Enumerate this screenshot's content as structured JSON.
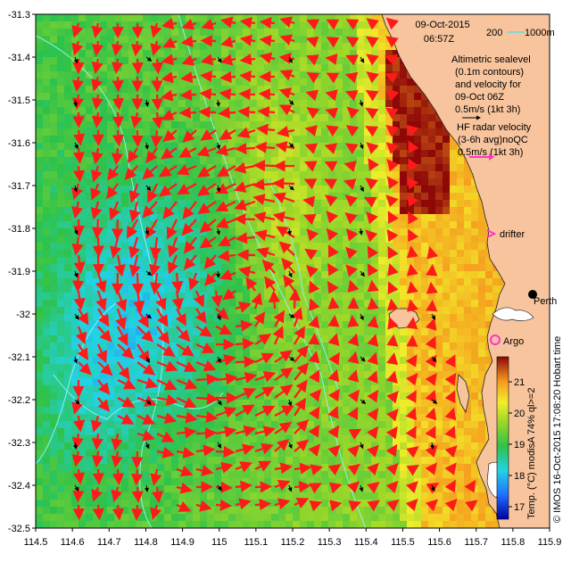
{
  "title": {
    "date": "09-Oct-2015",
    "time": "06:57Z"
  },
  "scale_bar": {
    "label_left": "200",
    "label_right": "1000m"
  },
  "altimetry_legend": {
    "line1": "Altimetric sealevel",
    "line2": "(0.1m contours)",
    "line3": "and velocity for",
    "line4": "09-Oct 06Z",
    "line5": "0.5m/s (1kt 3h)"
  },
  "radar_legend": {
    "line1": "HF radar velocity",
    "line2": "(3-6h avg)noQC",
    "line3": "0.5m/s (1kt 3h)"
  },
  "markers": {
    "drifter": "drifter",
    "argo": "Argo",
    "city": "Perth"
  },
  "x_axis": {
    "ticks": [
      "114.5",
      "114.6",
      "114.7",
      "114.8",
      "114.9",
      "115",
      "115.1",
      "115.2",
      "115.3",
      "115.4",
      "115.5",
      "115.6",
      "115.7",
      "115.8",
      "115.9"
    ]
  },
  "y_axis": {
    "ticks": [
      "-31.3",
      "-31.4",
      "-31.5",
      "-31.6",
      "-31.7",
      "-31.8",
      "-31.9",
      "-32",
      "-32.1",
      "-32.2",
      "-32.3",
      "-32.4",
      "-32.5"
    ]
  },
  "colorbar": {
    "ticks": [
      "17",
      "18",
      "19",
      "20",
      "21"
    ],
    "label": "Temp. (°C) modisA 74% ql>=2"
  },
  "credit": "© IMOS 16-Oct-2015 17:08:20 Hobart time",
  "colors": {
    "land": "#f7c49d",
    "radar_arrow": "#ff1a1a",
    "magenta": "#ff33cc",
    "cyan_contour": "#8ef2f2"
  },
  "map_extent": {
    "lon_min": 114.5,
    "lon_max": 115.9,
    "lat_min": -32.5,
    "lat_max": -31.3
  }
}
